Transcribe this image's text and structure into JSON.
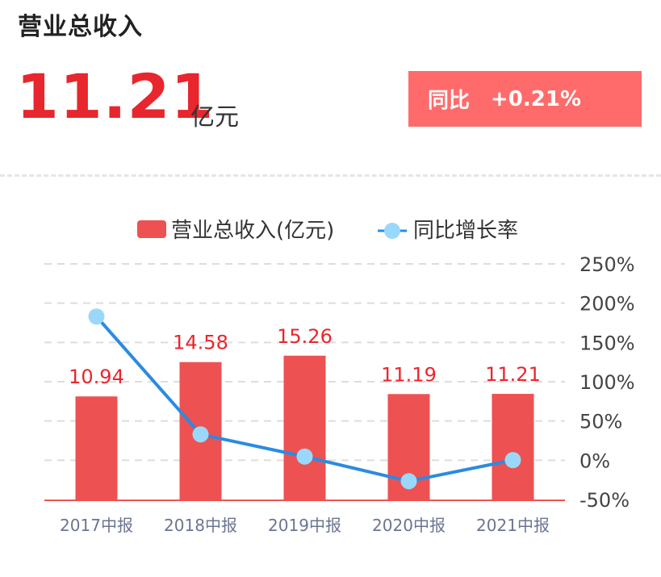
{
  "header": {
    "title": "营业总收入",
    "value": "11.21",
    "unit": "亿元",
    "yoy_label": "同比",
    "yoy_value": "+0.21%"
  },
  "colors": {
    "bar": "#ee5152",
    "line": "#2b8be0",
    "point": "#9ad8fb",
    "value_text": "#e8262d",
    "badge": "#ff6b6b"
  },
  "chart_data": {
    "type": "bar",
    "categories": [
      "2017中报",
      "2018中报",
      "2019中报",
      "2020中报",
      "2021中报"
    ],
    "series": [
      {
        "name": "营业总收入(亿元)",
        "type": "bar",
        "axis": "left",
        "values": [
          10.94,
          14.58,
          15.26,
          11.19,
          11.21
        ],
        "value_labels": [
          "10.94",
          "14.58",
          "15.26",
          "11.19",
          "11.21"
        ]
      },
      {
        "name": "同比增长率",
        "type": "line",
        "axis": "right",
        "values": [
          183,
          33,
          4.7,
          -26.7,
          0.21
        ]
      }
    ],
    "y_right": {
      "ticks": [
        250,
        200,
        150,
        100,
        50,
        0,
        -50
      ],
      "tick_labels": [
        "250%",
        "200%",
        "150%",
        "100%",
        "50%",
        "0%",
        "-50%"
      ],
      "range": [
        -50,
        250
      ]
    },
    "y_left_range": [
      0,
      25
    ],
    "legend_position": "top-center",
    "grid": true
  }
}
